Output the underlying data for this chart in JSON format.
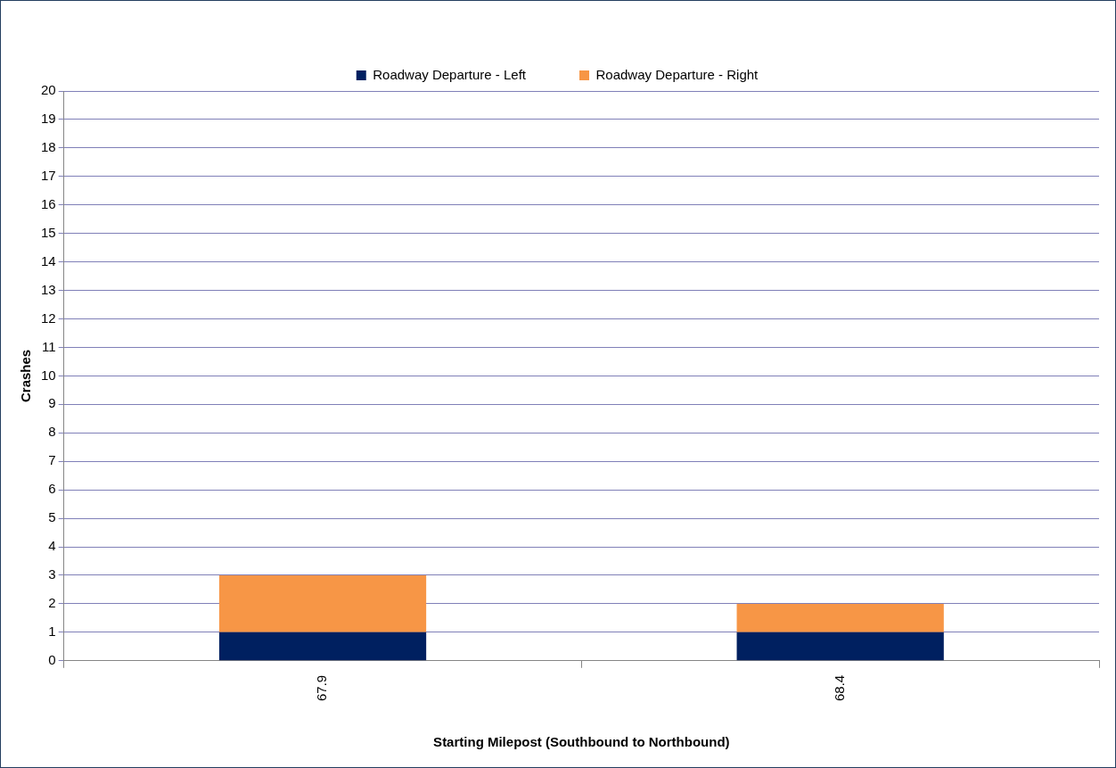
{
  "chart_data": {
    "type": "bar",
    "stacked": true,
    "xlabel": "Starting Milepost (Southbound to Northbound)",
    "ylabel": "Crashes",
    "categories": [
      "67.9",
      "68.4"
    ],
    "series": [
      {
        "name": "Roadway Departure - Left",
        "color": "#002060",
        "values": [
          1,
          1
        ]
      },
      {
        "name": "Roadway Departure - Right",
        "color": "#f79646",
        "values": [
          2,
          1
        ]
      }
    ],
    "ylim": [
      0,
      20
    ],
    "yticks": [
      0,
      1,
      2,
      3,
      4,
      5,
      6,
      7,
      8,
      9,
      10,
      11,
      12,
      13,
      14,
      15,
      16,
      17,
      18,
      19,
      20
    ],
    "grid": "y",
    "legend": "top"
  }
}
